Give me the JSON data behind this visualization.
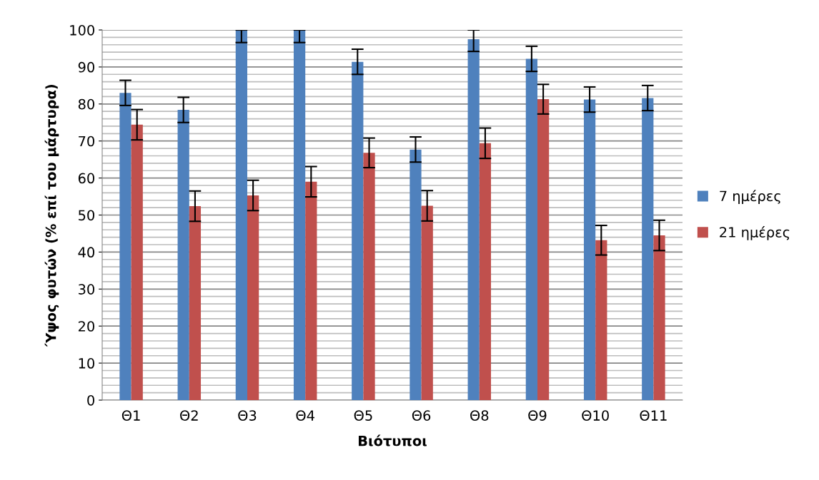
{
  "chart_data": {
    "type": "bar",
    "xlabel": "Βιότυποι",
    "ylabel": "Ύψος φυτών (% επί του μάρτυρα)",
    "categories": [
      "Θ1",
      "Θ2",
      "Θ3",
      "Θ4",
      "Θ5",
      "Θ6",
      "Θ8",
      "Θ9",
      "Θ10",
      "Θ11"
    ],
    "series": [
      {
        "name": "7 ημέρες",
        "color": "#4f81bd",
        "values": [
          83.0,
          78.4,
          100,
          100,
          91.4,
          67.7,
          97.5,
          92.2,
          81.2,
          81.6
        ],
        "errors": [
          3.4,
          3.4,
          [
            96.6,
            100
          ],
          [
            96.6,
            100
          ],
          3.4,
          3.4,
          [
            94.2,
            100
          ],
          3.4,
          3.4,
          3.4
        ]
      },
      {
        "name": "21 ημέρες",
        "color": "#c0504d",
        "values": [
          74.4,
          52.4,
          55.3,
          59.0,
          66.8,
          52.5,
          69.4,
          81.3,
          43.2,
          44.5
        ],
        "errors": [
          4.1,
          4.1,
          4.1,
          4.1,
          4.0,
          4.1,
          4.1,
          4.0,
          4.0,
          4.1
        ]
      }
    ],
    "ylim": [
      0,
      100
    ],
    "yticks": [
      0,
      10,
      20,
      30,
      40,
      50,
      60,
      70,
      80,
      90,
      100
    ],
    "grid": "y",
    "legend": "right"
  }
}
